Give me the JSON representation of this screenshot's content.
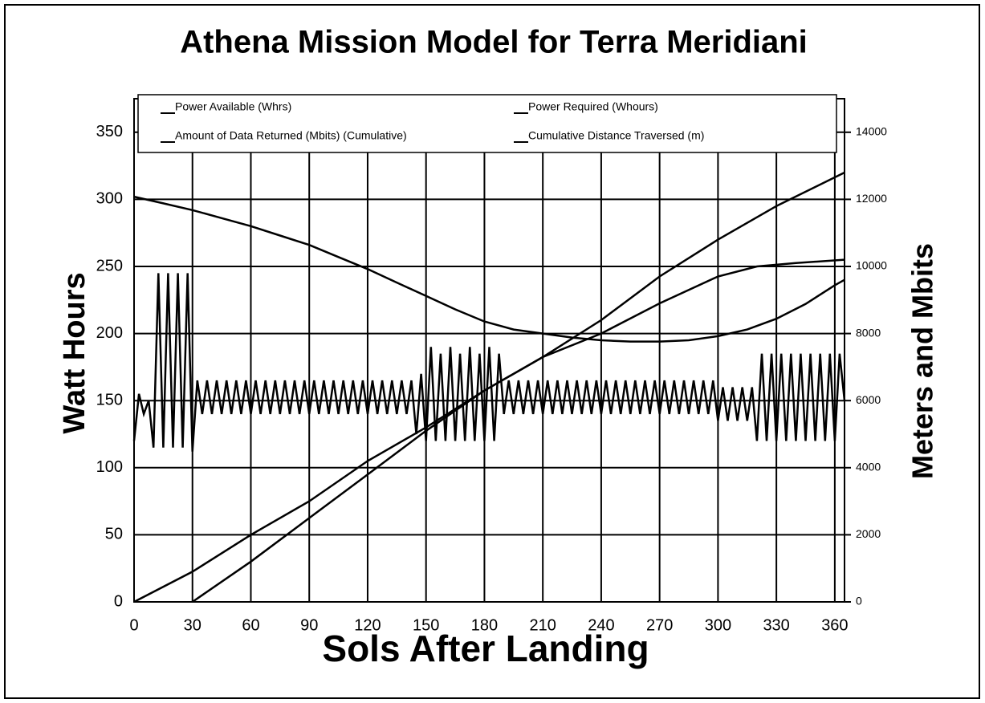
{
  "chart_data": {
    "type": "line",
    "title": "Athena Mission Model for Terra Meridiani",
    "x_label": "Sols After Landing",
    "y_label": "Watt Hours",
    "y2_label": "Meters and Mbits",
    "xlim": [
      0,
      365
    ],
    "xticks": [
      0,
      30,
      60,
      90,
      120,
      150,
      180,
      210,
      240,
      270,
      300,
      330,
      360
    ],
    "ylim": [
      0,
      375
    ],
    "yticks": [
      0,
      50,
      100,
      150,
      200,
      250,
      300,
      350
    ],
    "y2lim": [
      0,
      15000
    ],
    "y2ticks": [
      0,
      {
        "value": 2000,
        "label": "2000"
      },
      {
        "value": 4000,
        "label": "4000"
      },
      {
        "value": 6000,
        "label": "6000"
      },
      {
        "value": 8000,
        "label": "8000"
      },
      {
        "value": 10000,
        "label": "10000"
      },
      {
        "value": 12000,
        "label": "12000"
      },
      {
        "value": 14000,
        "label": "14000"
      }
    ],
    "grid": true,
    "series": [
      {
        "name": "Power Available (Whrs)",
        "color": "#000000",
        "axis": "y",
        "x": [
          0,
          15,
          30,
          45,
          60,
          75,
          90,
          105,
          120,
          135,
          150,
          165,
          180,
          195,
          210,
          225,
          240,
          255,
          270,
          285,
          300,
          315,
          330,
          345,
          360,
          365
        ],
        "values": [
          302,
          297,
          292,
          286,
          280,
          273,
          266,
          257,
          248,
          238,
          228,
          218,
          209,
          203,
          200,
          197,
          195,
          194,
          194,
          195,
          198,
          203,
          211,
          222,
          236,
          240
        ]
      },
      {
        "name": "Power Required (Whours)",
        "color": "#000000",
        "axis": "y",
        "x": [
          0,
          2.5,
          5,
          7.5,
          10,
          12.5,
          15,
          17.5,
          20,
          22.5,
          25,
          27.5,
          30,
          32.5,
          35,
          37.5,
          40,
          42.5,
          45,
          47.5,
          50,
          52.5,
          55,
          57.5,
          60,
          62.5,
          65,
          67.5,
          70,
          72.5,
          75,
          77.5,
          80,
          82.5,
          85,
          87.5,
          90,
          92.5,
          95,
          97.5,
          100,
          102.5,
          105,
          107.5,
          110,
          112.5,
          115,
          117.5,
          120,
          122.5,
          125,
          127.5,
          130,
          132.5,
          135,
          137.5,
          140,
          142.5,
          145,
          147.5,
          150,
          152.5,
          155,
          157.5,
          160,
          162.5,
          165,
          167.5,
          170,
          172.5,
          175,
          177.5,
          180,
          182.5,
          185,
          187.5,
          190,
          192.5,
          195,
          197.5,
          200,
          202.5,
          205,
          207.5,
          210,
          212.5,
          215,
          217.5,
          220,
          222.5,
          225,
          227.5,
          230,
          232.5,
          235,
          237.5,
          240,
          242.5,
          245,
          247.5,
          250,
          252.5,
          255,
          257.5,
          260,
          262.5,
          265,
          267.5,
          270,
          272.5,
          275,
          277.5,
          280,
          282.5,
          285,
          287.5,
          290,
          292.5,
          295,
          297.5,
          300,
          302.5,
          305,
          307.5,
          310,
          312.5,
          315,
          317.5,
          320,
          322.5,
          325,
          327.5,
          330,
          332.5,
          335,
          337.5,
          340,
          342.5,
          345,
          347.5,
          350,
          352.5,
          355,
          357.5,
          360,
          362.5,
          365
        ],
        "values": [
          120,
          155,
          140,
          150,
          115,
          245,
          115,
          245,
          115,
          245,
          115,
          245,
          112,
          165,
          140,
          165,
          140,
          165,
          140,
          165,
          140,
          165,
          140,
          165,
          140,
          165,
          140,
          165,
          140,
          165,
          140,
          165,
          140,
          165,
          140,
          165,
          140,
          165,
          140,
          165,
          140,
          165,
          140,
          165,
          140,
          165,
          140,
          165,
          140,
          165,
          140,
          165,
          140,
          165,
          140,
          165,
          140,
          165,
          125,
          170,
          120,
          190,
          120,
          185,
          120,
          190,
          120,
          185,
          120,
          190,
          120,
          185,
          120,
          190,
          120,
          185,
          140,
          165,
          140,
          165,
          140,
          165,
          140,
          165,
          140,
          165,
          140,
          165,
          140,
          165,
          140,
          165,
          140,
          165,
          140,
          165,
          140,
          165,
          140,
          165,
          140,
          165,
          140,
          165,
          140,
          165,
          140,
          165,
          140,
          165,
          140,
          165,
          140,
          165,
          140,
          165,
          140,
          165,
          140,
          165,
          135,
          160,
          135,
          160,
          135,
          160,
          135,
          160,
          120,
          185,
          120,
          185,
          120,
          185,
          120,
          185,
          120,
          185,
          120,
          185,
          120,
          185,
          120,
          185,
          120,
          185,
          150
        ]
      },
      {
        "name": "Amount of Data Returned (Mbits) (Cumulative)",
        "color": "#000000",
        "axis": "y2",
        "x": [
          0,
          30,
          60,
          90,
          120,
          150,
          180,
          210,
          240,
          270,
          300,
          330,
          365
        ],
        "values": [
          0,
          900,
          2000,
          3000,
          4200,
          5200,
          6300,
          7300,
          8400,
          9700,
          10800,
          11800,
          12800
        ]
      },
      {
        "name": "Cumulative Distance Traversed (m)",
        "color": "#000000",
        "axis": "y2",
        "x": [
          30,
          60,
          90,
          120,
          150,
          180,
          210,
          240,
          270,
          300,
          320,
          340,
          365
        ],
        "values": [
          0,
          1200,
          2500,
          3800,
          5100,
          6300,
          7300,
          8000,
          8900,
          9700,
          10000,
          10100,
          10200
        ]
      }
    ]
  }
}
